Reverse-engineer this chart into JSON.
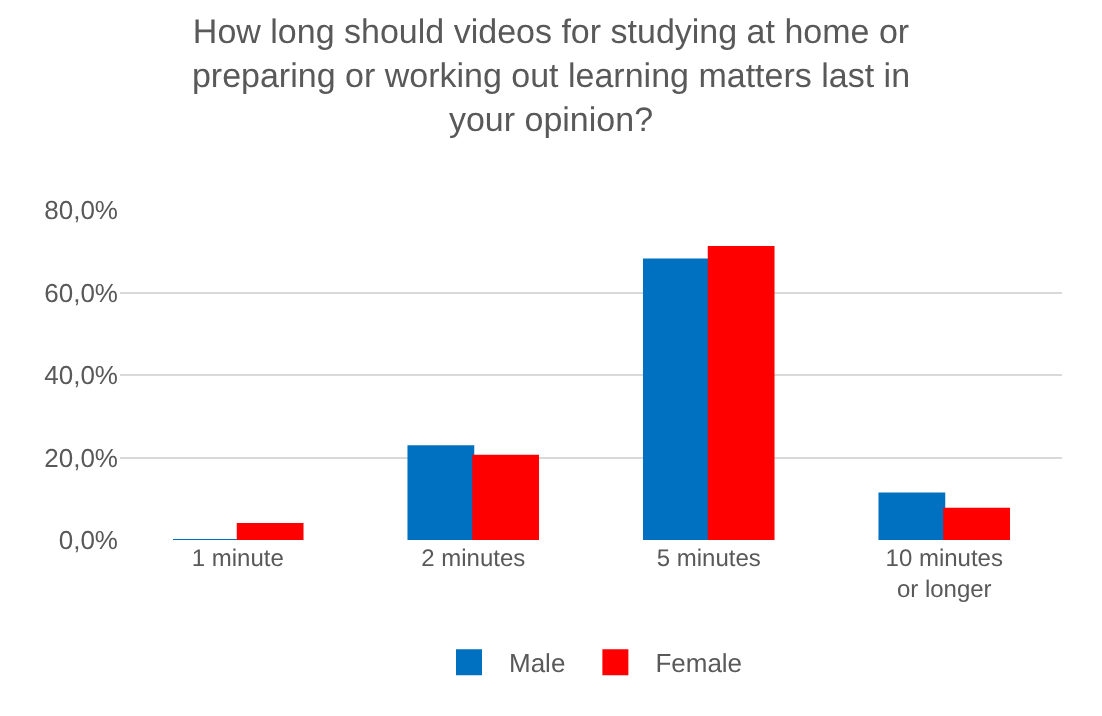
{
  "chart_data": {
    "type": "bar",
    "title": "How long should videos for studying at home or preparing or working out learning matters last in your opinion?",
    "categories": [
      "1 minute",
      "2 minutes",
      "5 minutes",
      "10 minutes or longer"
    ],
    "series": [
      {
        "name": "Male",
        "color": "#0070c0",
        "values": [
          0,
          22.7,
          68,
          11.3
        ]
      },
      {
        "name": "Female",
        "color": "#ff0000",
        "values": [
          3.9,
          20.4,
          71,
          7.6
        ]
      }
    ],
    "ylim": [
      0,
      80
    ],
    "yticks": [
      {
        "value": 0,
        "label": "0,0%"
      },
      {
        "value": 20,
        "label": "20,0%"
      },
      {
        "value": 40,
        "label": "40,0%"
      },
      {
        "value": 60,
        "label": "60,0%"
      },
      {
        "value": 80,
        "label": "80,0%"
      }
    ],
    "grid": "y",
    "legend": "bottom"
  }
}
